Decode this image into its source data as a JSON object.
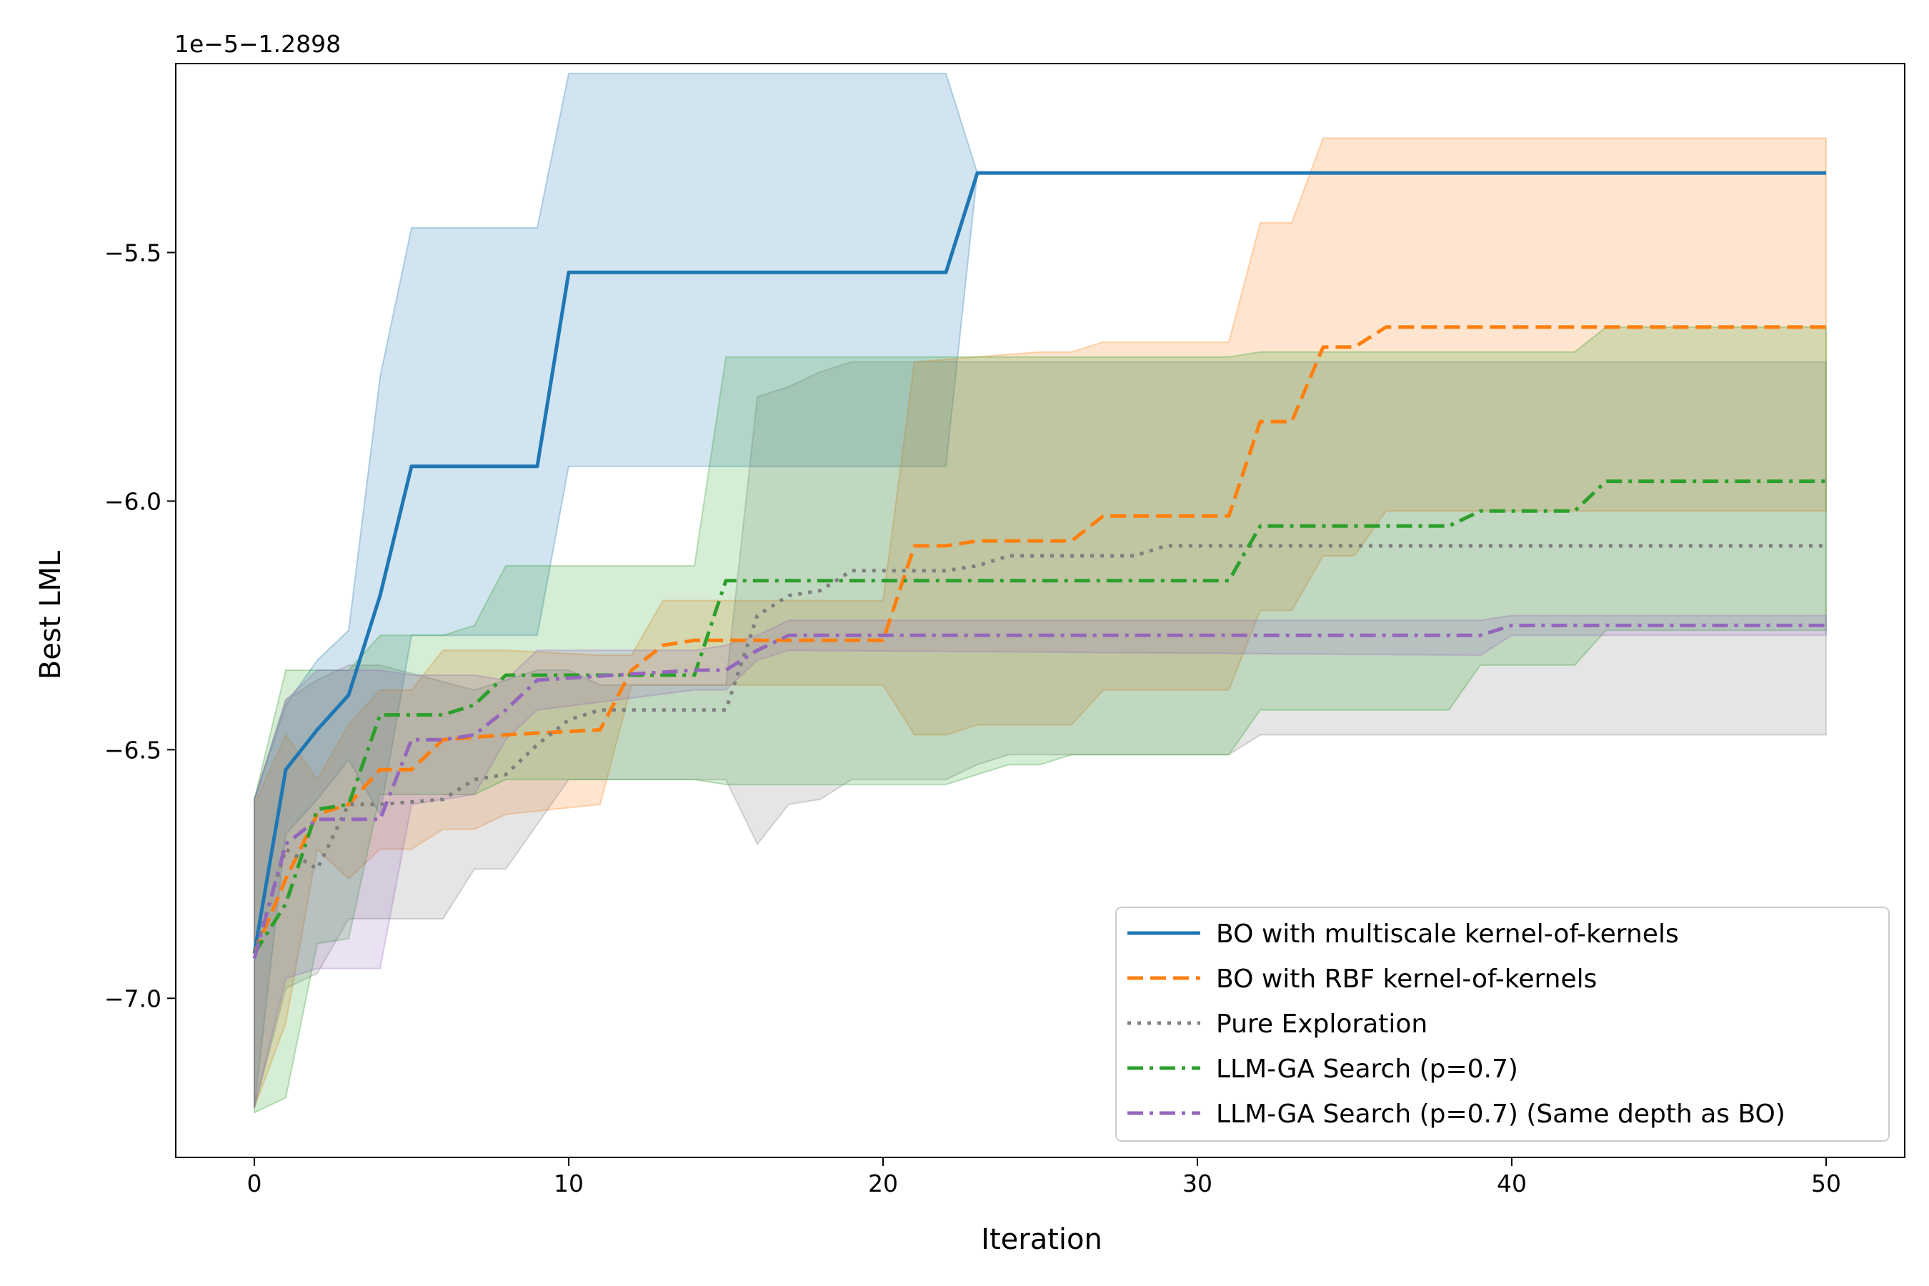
{
  "chart_data": {
    "type": "line",
    "xlabel": "Iteration",
    "ylabel": "Best LML",
    "offset_text": "1e−5−1.2898",
    "xlim": [
      -2.5,
      52.5
    ],
    "ylim": [
      -7.32,
      -5.12
    ],
    "xticks": [
      0,
      10,
      20,
      30,
      40,
      50
    ],
    "yticks": [
      -7.0,
      -6.5,
      -6.0,
      -5.5
    ],
    "xtick_labels": [
      "0",
      "10",
      "20",
      "30",
      "40",
      "50"
    ],
    "ytick_labels": [
      "−7.0",
      "−6.5",
      "−6.0",
      "−5.5"
    ],
    "legend_position": "lower-right",
    "series": [
      {
        "name": "BO with multiscale kernel-of-kernels",
        "color": "#1f77b4",
        "style": "solid",
        "points": [
          [
            0,
            -6.91
          ],
          [
            1,
            -6.54
          ],
          [
            2,
            -6.46
          ],
          [
            3,
            -6.39
          ],
          [
            4,
            -6.19
          ],
          [
            5,
            -5.93
          ],
          [
            9,
            -5.93
          ],
          [
            10,
            -5.54
          ],
          [
            22,
            -5.54
          ],
          [
            23,
            -5.34
          ],
          [
            50,
            -5.34
          ]
        ],
        "upper": [
          [
            0,
            -6.6
          ],
          [
            1,
            -6.41
          ],
          [
            2,
            -6.32
          ],
          [
            3,
            -6.26
          ],
          [
            4,
            -5.75
          ],
          [
            5,
            -5.45
          ],
          [
            9,
            -5.45
          ],
          [
            10,
            -5.14
          ],
          [
            22,
            -5.14
          ],
          [
            23,
            -5.34
          ]
        ],
        "lower": [
          [
            0,
            -7.22
          ],
          [
            1,
            -6.67
          ],
          [
            2,
            -6.6
          ],
          [
            3,
            -6.52
          ],
          [
            4,
            -6.63
          ],
          [
            5,
            -6.27
          ],
          [
            9,
            -6.27
          ],
          [
            10,
            -5.93
          ],
          [
            22,
            -5.93
          ],
          [
            23,
            -5.34
          ]
        ]
      },
      {
        "name": "BO with RBF kernel-of-kernels",
        "color": "#ff7f0e",
        "style": "dashed",
        "points": [
          [
            0,
            -6.91
          ],
          [
            1,
            -6.76
          ],
          [
            2,
            -6.63
          ],
          [
            3,
            -6.61
          ],
          [
            4,
            -6.54
          ],
          [
            5,
            -6.54
          ],
          [
            6,
            -6.48
          ],
          [
            8,
            -6.47
          ],
          [
            11,
            -6.46
          ],
          [
            12,
            -6.34
          ],
          [
            13,
            -6.29
          ],
          [
            14,
            -6.28
          ],
          [
            20,
            -6.28
          ],
          [
            21,
            -6.09
          ],
          [
            22,
            -6.09
          ],
          [
            23,
            -6.08
          ],
          [
            26,
            -6.08
          ],
          [
            27,
            -6.03
          ],
          [
            31,
            -6.03
          ],
          [
            32,
            -5.84
          ],
          [
            33,
            -5.84
          ],
          [
            34,
            -5.69
          ],
          [
            35,
            -5.69
          ],
          [
            36,
            -5.65
          ],
          [
            50,
            -5.65
          ]
        ],
        "upper": [
          [
            0,
            -6.61
          ],
          [
            1,
            -6.47
          ],
          [
            2,
            -6.56
          ],
          [
            3,
            -6.45
          ],
          [
            4,
            -6.38
          ],
          [
            5,
            -6.38
          ],
          [
            6,
            -6.3
          ],
          [
            8,
            -6.3
          ],
          [
            11,
            -6.31
          ],
          [
            12,
            -6.31
          ],
          [
            13,
            -6.2
          ],
          [
            14,
            -6.2
          ],
          [
            20,
            -6.2
          ],
          [
            21,
            -5.72
          ],
          [
            25,
            -5.7
          ],
          [
            26,
            -5.7
          ],
          [
            27,
            -5.68
          ],
          [
            31,
            -5.68
          ],
          [
            32,
            -5.44
          ],
          [
            33,
            -5.44
          ],
          [
            34,
            -5.27
          ],
          [
            36,
            -5.27
          ],
          [
            50,
            -5.27
          ]
        ],
        "lower": [
          [
            0,
            -7.22
          ],
          [
            1,
            -7.05
          ],
          [
            2,
            -6.7
          ],
          [
            3,
            -6.76
          ],
          [
            4,
            -6.7
          ],
          [
            5,
            -6.7
          ],
          [
            6,
            -6.66
          ],
          [
            7,
            -6.66
          ],
          [
            8,
            -6.63
          ],
          [
            11,
            -6.61
          ],
          [
            12,
            -6.37
          ],
          [
            13,
            -6.37
          ],
          [
            14,
            -6.37
          ],
          [
            20,
            -6.37
          ],
          [
            21,
            -6.47
          ],
          [
            22,
            -6.47
          ],
          [
            23,
            -6.45
          ],
          [
            26,
            -6.45
          ],
          [
            27,
            -6.38
          ],
          [
            31,
            -6.38
          ],
          [
            32,
            -6.22
          ],
          [
            33,
            -6.22
          ],
          [
            34,
            -6.11
          ],
          [
            35,
            -6.11
          ],
          [
            36,
            -6.02
          ],
          [
            50,
            -6.02
          ]
        ]
      },
      {
        "name": "Pure Exploration",
        "color": "#7f7f7f",
        "style": "dotted",
        "points": [
          [
            0,
            -6.91
          ],
          [
            1,
            -6.7
          ],
          [
            2,
            -6.74
          ],
          [
            3,
            -6.61
          ],
          [
            4,
            -6.61
          ],
          [
            6,
            -6.6
          ],
          [
            7,
            -6.56
          ],
          [
            8,
            -6.55
          ],
          [
            9,
            -6.49
          ],
          [
            10,
            -6.44
          ],
          [
            11,
            -6.42
          ],
          [
            15,
            -6.42
          ],
          [
            16,
            -6.23
          ],
          [
            17,
            -6.19
          ],
          [
            18,
            -6.18
          ],
          [
            19,
            -6.14
          ],
          [
            22,
            -6.14
          ],
          [
            23,
            -6.13
          ],
          [
            24,
            -6.11
          ],
          [
            28,
            -6.11
          ],
          [
            29,
            -6.09
          ],
          [
            50,
            -6.09
          ]
        ],
        "upper": [
          [
            0,
            -6.6
          ],
          [
            1,
            -6.4
          ],
          [
            2,
            -6.36
          ],
          [
            3,
            -6.33
          ],
          [
            4,
            -6.33
          ],
          [
            7,
            -6.38
          ],
          [
            9,
            -6.34
          ],
          [
            10,
            -6.34
          ],
          [
            11,
            -6.37
          ],
          [
            15,
            -6.37
          ],
          [
            16,
            -5.79
          ],
          [
            17,
            -5.77
          ],
          [
            18,
            -5.74
          ],
          [
            19,
            -5.72
          ],
          [
            50,
            -5.72
          ]
        ],
        "lower": [
          [
            0,
            -7.22
          ],
          [
            1,
            -6.98
          ],
          [
            2,
            -6.95
          ],
          [
            3,
            -6.84
          ],
          [
            4,
            -6.84
          ],
          [
            6,
            -6.84
          ],
          [
            7,
            -6.74
          ],
          [
            8,
            -6.74
          ],
          [
            9,
            -6.65
          ],
          [
            10,
            -6.56
          ],
          [
            11,
            -6.56
          ],
          [
            15,
            -6.56
          ],
          [
            16,
            -6.69
          ],
          [
            17,
            -6.61
          ],
          [
            18,
            -6.6
          ],
          [
            19,
            -6.56
          ],
          [
            22,
            -6.56
          ],
          [
            23,
            -6.53
          ],
          [
            24,
            -6.51
          ],
          [
            28,
            -6.51
          ],
          [
            29,
            -6.51
          ],
          [
            31,
            -6.51
          ],
          [
            32,
            -6.47
          ],
          [
            50,
            -6.47
          ]
        ]
      },
      {
        "name": "LLM-GA Search (p=0.7)",
        "color": "#2ca02c",
        "style": "dashdot",
        "points": [
          [
            0,
            -6.91
          ],
          [
            1,
            -6.81
          ],
          [
            2,
            -6.62
          ],
          [
            3,
            -6.61
          ],
          [
            4,
            -6.43
          ],
          [
            5,
            -6.43
          ],
          [
            6,
            -6.43
          ],
          [
            7,
            -6.41
          ],
          [
            8,
            -6.35
          ],
          [
            14,
            -6.35
          ],
          [
            15,
            -6.16
          ],
          [
            31,
            -6.16
          ],
          [
            32,
            -6.05
          ],
          [
            38,
            -6.05
          ],
          [
            39,
            -6.02
          ],
          [
            42,
            -6.02
          ],
          [
            43,
            -5.96
          ],
          [
            50,
            -5.96
          ]
        ],
        "upper": [
          [
            0,
            -6.6
          ],
          [
            1,
            -6.34
          ],
          [
            3,
            -6.34
          ],
          [
            4,
            -6.27
          ],
          [
            6,
            -6.27
          ],
          [
            7,
            -6.25
          ],
          [
            8,
            -6.13
          ],
          [
            14,
            -6.13
          ],
          [
            15,
            -5.71
          ],
          [
            31,
            -5.71
          ],
          [
            32,
            -5.7
          ],
          [
            42,
            -5.7
          ],
          [
            43,
            -5.65
          ],
          [
            50,
            -5.65
          ]
        ],
        "lower": [
          [
            0,
            -7.23
          ],
          [
            1,
            -7.2
          ],
          [
            2,
            -6.89
          ],
          [
            3,
            -6.88
          ],
          [
            4,
            -6.59
          ],
          [
            7,
            -6.59
          ],
          [
            8,
            -6.56
          ],
          [
            14,
            -6.56
          ],
          [
            15,
            -6.57
          ],
          [
            21,
            -6.57
          ],
          [
            22,
            -6.57
          ],
          [
            23,
            -6.55
          ],
          [
            24,
            -6.53
          ],
          [
            25,
            -6.53
          ],
          [
            26,
            -6.51
          ],
          [
            31,
            -6.51
          ],
          [
            32,
            -6.42
          ],
          [
            38,
            -6.42
          ],
          [
            39,
            -6.33
          ],
          [
            42,
            -6.33
          ],
          [
            43,
            -6.26
          ],
          [
            50,
            -6.26
          ]
        ]
      },
      {
        "name": "LLM-GA Search (p=0.7) (Same depth as BO)",
        "color": "#9467bd",
        "style": "dashdot",
        "points": [
          [
            0,
            -6.92
          ],
          [
            1,
            -6.69
          ],
          [
            2,
            -6.64
          ],
          [
            3,
            -6.64
          ],
          [
            4,
            -6.64
          ],
          [
            5,
            -6.48
          ],
          [
            6,
            -6.48
          ],
          [
            7,
            -6.47
          ],
          [
            8,
            -6.42
          ],
          [
            9,
            -6.36
          ],
          [
            14,
            -6.34
          ],
          [
            15,
            -6.34
          ],
          [
            16,
            -6.3
          ],
          [
            17,
            -6.27
          ],
          [
            39,
            -6.27
          ],
          [
            40,
            -6.25
          ],
          [
            50,
            -6.25
          ]
        ],
        "upper": [
          [
            0,
            -6.6
          ],
          [
            1,
            -6.4
          ],
          [
            2,
            -6.34
          ],
          [
            4,
            -6.34
          ],
          [
            5,
            -6.35
          ],
          [
            7,
            -6.35
          ],
          [
            8,
            -6.36
          ],
          [
            9,
            -6.3
          ],
          [
            14,
            -6.3
          ],
          [
            15,
            -6.29
          ],
          [
            16,
            -6.27
          ],
          [
            17,
            -6.24
          ],
          [
            39,
            -6.24
          ],
          [
            40,
            -6.23
          ],
          [
            50,
            -6.23
          ]
        ],
        "lower": [
          [
            0,
            -7.22
          ],
          [
            1,
            -6.96
          ],
          [
            2,
            -6.94
          ],
          [
            4,
            -6.94
          ],
          [
            5,
            -6.61
          ],
          [
            7,
            -6.59
          ],
          [
            8,
            -6.48
          ],
          [
            9,
            -6.42
          ],
          [
            14,
            -6.38
          ],
          [
            15,
            -6.38
          ],
          [
            16,
            -6.32
          ],
          [
            17,
            -6.3
          ],
          [
            39,
            -6.31
          ],
          [
            40,
            -6.27
          ],
          [
            50,
            -6.27
          ]
        ]
      }
    ]
  }
}
